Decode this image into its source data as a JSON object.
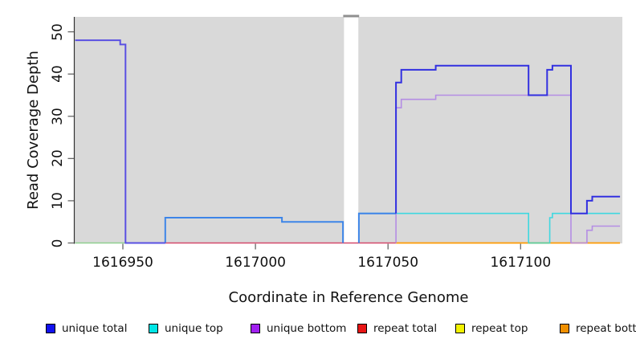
{
  "y_axis": {
    "label": "Read Coverage Depth",
    "ticks": [
      0,
      10,
      20,
      30,
      40,
      50
    ]
  },
  "x_axis": {
    "label": "Coordinate in Reference Genome",
    "ticks": [
      1616950,
      1617000,
      1617050,
      1617100
    ]
  },
  "legend": {
    "items": [
      {
        "label": "unique total",
        "color": "#1111ee"
      },
      {
        "label": "unique top",
        "color": "#00e5e5"
      },
      {
        "label": "unique bottom",
        "color": "#a020f0"
      },
      {
        "label": "repeat total",
        "color": "#e81515"
      },
      {
        "label": "repeat top",
        "color": "#f2f200"
      },
      {
        "label": "repeat bottom",
        "color": "#f09000"
      }
    ]
  },
  "chart_data": {
    "type": "line",
    "step": true,
    "title": "",
    "xlabel": "Coordinate in Reference Genome",
    "ylabel": "Read Coverage Depth",
    "xlim": [
      1616932,
      1617138
    ],
    "ylim": [
      0,
      52
    ],
    "x_ticks": [
      1616950,
      1617000,
      1617050,
      1617100
    ],
    "y_ticks": [
      0,
      10,
      20,
      30,
      40,
      50
    ],
    "panel_bg": "#d9d9d9",
    "grid": false,
    "legend_position": "bottom",
    "coverage_gap": {
      "from": 1617033.4,
      "to": 1617038.8,
      "fill": "#ffffff",
      "cap_color": "#8f8f8f"
    },
    "series": [
      {
        "name": "unique total",
        "points": [
          [
            1616932,
            48
          ],
          [
            1616949,
            47
          ],
          [
            1616951,
            0
          ],
          [
            1616966,
            6
          ],
          [
            1617010,
            5
          ],
          [
            1617033,
            0
          ],
          [
            1617039,
            7
          ],
          [
            1617053,
            38
          ],
          [
            1617055,
            41
          ],
          [
            1617068,
            42
          ],
          [
            1617103,
            35
          ],
          [
            1617110,
            41
          ],
          [
            1617112,
            42
          ],
          [
            1617119,
            7
          ],
          [
            1617125,
            10
          ],
          [
            1617127,
            11
          ],
          [
            1617138,
            11
          ]
        ]
      },
      {
        "name": "unique top",
        "points": [
          [
            1616932,
            0
          ],
          [
            1617039,
            7
          ],
          [
            1617103,
            0
          ],
          [
            1617111,
            6
          ],
          [
            1617112,
            7
          ],
          [
            1617138,
            7
          ]
        ]
      },
      {
        "name": "unique bottom",
        "points": [
          [
            1616932,
            0
          ],
          [
            1617053,
            32
          ],
          [
            1617055,
            34
          ],
          [
            1617068,
            35
          ],
          [
            1617119,
            0
          ],
          [
            1617125,
            3
          ],
          [
            1617127,
            4
          ],
          [
            1617138,
            4
          ]
        ]
      },
      {
        "name": "repeat total",
        "points": [
          [
            1616932,
            0
          ],
          [
            1617138,
            0
          ]
        ]
      },
      {
        "name": "repeat top",
        "points": [
          [
            1616932,
            0
          ],
          [
            1617138,
            0
          ]
        ]
      },
      {
        "name": "repeat bottom",
        "points": [
          [
            1616932,
            0
          ],
          [
            1617138,
            0
          ]
        ]
      }
    ],
    "render_lines": [
      {
        "name": "zero-line-left-green",
        "color": "#8fd08f",
        "width": 1.4,
        "points": [
          [
            1616932,
            0
          ],
          [
            1616951,
            0
          ]
        ]
      },
      {
        "name": "zero-line-mid-crimson",
        "color": "#d4496b",
        "width": 1.4,
        "points": [
          [
            1616951,
            0
          ],
          [
            1617053,
            0
          ]
        ]
      },
      {
        "name": "zero-line-right-orange",
        "color": "#ff9a00",
        "width": 1.8,
        "points": [
          [
            1617053,
            0
          ],
          [
            1617137.5,
            0
          ]
        ]
      },
      {
        "name": "unique-top-cyan",
        "color": "#3fd8e0",
        "width": 1.6,
        "points": [
          [
            1617039,
            7
          ],
          [
            1617103,
            7
          ],
          [
            1617103,
            0
          ],
          [
            1617111,
            0
          ],
          [
            1617111,
            6
          ],
          [
            1617112,
            6
          ],
          [
            1617112,
            7
          ],
          [
            1617137.5,
            7
          ]
        ]
      },
      {
        "name": "cyan-over-orange-blend",
        "color": "#5ccf9e",
        "width": 1.6,
        "points": [
          [
            1617103,
            0
          ],
          [
            1617111,
            0
          ]
        ]
      },
      {
        "name": "unique-bottom-purple",
        "color": "#b48de4",
        "width": 1.6,
        "points": [
          [
            1617053,
            0
          ],
          [
            1617053,
            32
          ],
          [
            1617055,
            32
          ],
          [
            1617055,
            34
          ],
          [
            1617068,
            34
          ],
          [
            1617068,
            35
          ],
          [
            1617119,
            35
          ],
          [
            1617119,
            0
          ],
          [
            1617125,
            0
          ],
          [
            1617125,
            3
          ],
          [
            1617127,
            3
          ],
          [
            1617127,
            4
          ],
          [
            1617137.5,
            4
          ]
        ]
      },
      {
        "name": "unique-total-mid-azure-a",
        "color": "#3d85e8",
        "width": 2,
        "points": [
          [
            1616966,
            0
          ],
          [
            1616966,
            6
          ],
          [
            1617010,
            6
          ],
          [
            1617010,
            5
          ],
          [
            1617033,
            5
          ],
          [
            1617033,
            0
          ]
        ]
      },
      {
        "name": "unique-total-mid-azure-b",
        "color": "#3d85e8",
        "width": 2,
        "points": [
          [
            1617039,
            0
          ],
          [
            1617039,
            7
          ],
          [
            1617053,
            7
          ]
        ]
      },
      {
        "name": "unique-total-left-indigo",
        "color": "#5a50e2",
        "width": 2,
        "points": [
          [
            1616932,
            48
          ],
          [
            1616949,
            48
          ],
          [
            1616949,
            47
          ],
          [
            1616951,
            47
          ],
          [
            1616951,
            0
          ],
          [
            1616966,
            0
          ]
        ]
      },
      {
        "name": "unique-total-right-blue",
        "color": "#3230e0",
        "width": 2,
        "points": [
          [
            1617053,
            7
          ],
          [
            1617053,
            38
          ],
          [
            1617055,
            38
          ],
          [
            1617055,
            41
          ],
          [
            1617068,
            41
          ],
          [
            1617068,
            42
          ],
          [
            1617103,
            42
          ],
          [
            1617103,
            35
          ],
          [
            1617110,
            35
          ],
          [
            1617110,
            41
          ],
          [
            1617112,
            41
          ],
          [
            1617112,
            42
          ],
          [
            1617119,
            42
          ],
          [
            1617119,
            7
          ],
          [
            1617125,
            7
          ],
          [
            1617125,
            10
          ],
          [
            1617127,
            10
          ],
          [
            1617127,
            11
          ],
          [
            1617137.5,
            11
          ]
        ]
      }
    ]
  }
}
